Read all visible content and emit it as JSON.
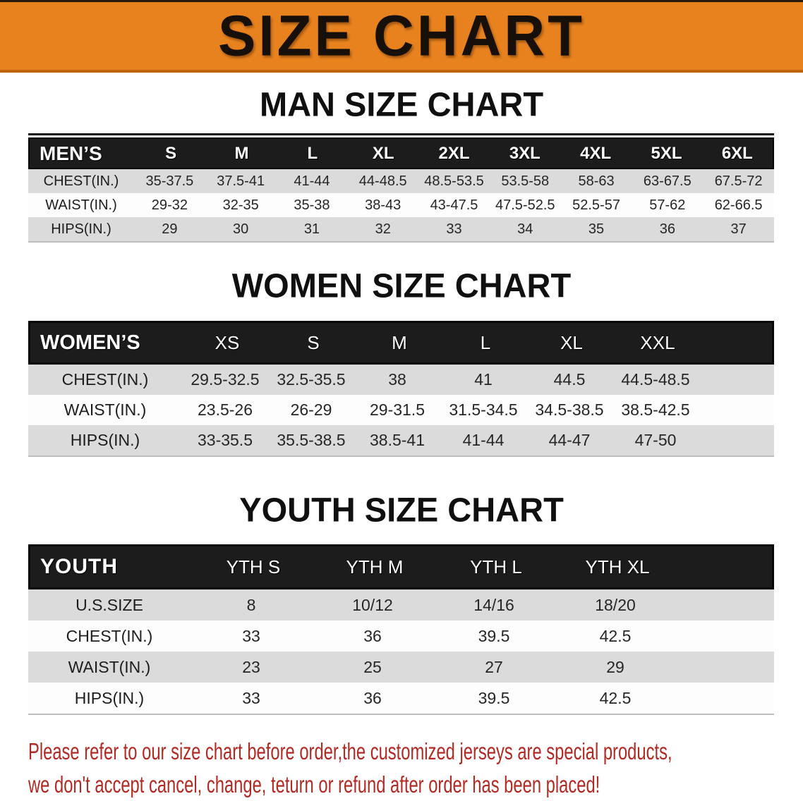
{
  "banner": {
    "title": "SIZE CHART"
  },
  "sections": [
    {
      "css": "men",
      "heading": "MAN SIZE CHART",
      "label": "MEN’S",
      "columns": [
        "S",
        "M",
        "L",
        "XL",
        "2XL",
        "3XL",
        "4XL",
        "5XL",
        "6XL"
      ],
      "rows": [
        {
          "label": "CHEST(IN.)",
          "values": [
            "35-37.5",
            "37.5-41",
            "41-44",
            "44-48.5",
            "48.5-53.5",
            "53.5-58",
            "58-63",
            "63-67.5",
            "67.5-72"
          ]
        },
        {
          "label": "WAIST(IN.)",
          "values": [
            "29-32",
            "32-35",
            "35-38",
            "38-43",
            "43-47.5",
            "47.5-52.5",
            "52.5-57",
            "57-62",
            "62-66.5"
          ]
        },
        {
          "label": "HIPS(IN.)",
          "values": [
            "29",
            "30",
            "31",
            "32",
            "33",
            "34",
            "35",
            "36",
            "37"
          ]
        }
      ]
    },
    {
      "css": "women",
      "heading": "WOMEN SIZE CHART",
      "label": "WOMEN’S",
      "columns": [
        "XS",
        "S",
        "M",
        "L",
        "XL",
        "XXL"
      ],
      "rows": [
        {
          "label": "CHEST(IN.)",
          "values": [
            "29.5-32.5",
            "32.5-35.5",
            "38",
            "41",
            "44.5",
            "44.5-48.5"
          ]
        },
        {
          "label": "WAIST(IN.)",
          "values": [
            "23.5-26",
            "26-29",
            "29-31.5",
            "31.5-34.5",
            "34.5-38.5",
            "38.5-42.5"
          ]
        },
        {
          "label": "HIPS(IN.)",
          "values": [
            "33-35.5",
            "35.5-38.5",
            "38.5-41",
            "41-44",
            "44-47",
            "47-50"
          ]
        }
      ]
    },
    {
      "css": "youth",
      "heading": "YOUTH SIZE CHART",
      "label": "YOUTH",
      "columns": [
        "YTH S",
        "YTH M",
        "YTH L",
        "YTH XL"
      ],
      "rows": [
        {
          "label": "U.S.SIZE",
          "values": [
            "8",
            "10/12",
            "14/16",
            "18/20"
          ]
        },
        {
          "label": "CHEST(IN.)",
          "values": [
            "33",
            "36",
            "39.5",
            "42.5"
          ]
        },
        {
          "label": "WAIST(IN.)",
          "values": [
            "23",
            "25",
            "27",
            "29"
          ]
        },
        {
          "label": "HIPS(IN.)",
          "values": [
            "33",
            "36",
            "39.5",
            "42.5"
          ]
        }
      ]
    }
  ],
  "disclaimer": {
    "line1": "Please refer to our size chart before order,the customized jerseys are special products,",
    "line2": "we don't accept cancel, change, teturn or refund after order has been placed!"
  },
  "theme": {
    "banner_bg": "#E8821E",
    "banner_border": "#C06409",
    "top_strip": "#2A1B0B",
    "band_bg": "#1C1C1C",
    "row_alt": "#DBDBDB",
    "row_base": "#FDFDFD",
    "value_color": "#262626",
    "disclaimer_color": "#B22A23"
  }
}
